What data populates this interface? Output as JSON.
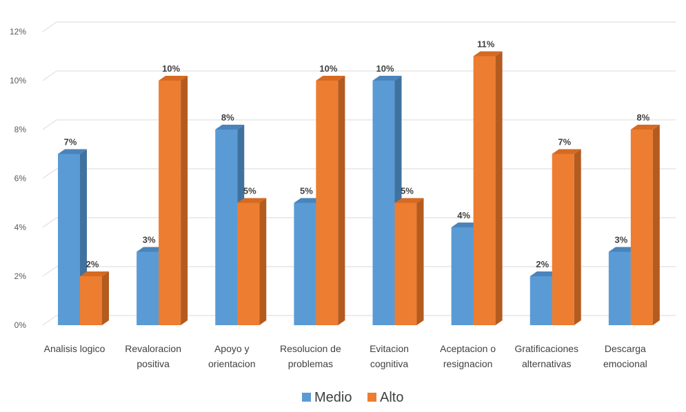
{
  "chart_data": {
    "type": "bar",
    "style": "3d-clustered-column",
    "categories": [
      [
        "Analisis logico"
      ],
      [
        "Revaloracion",
        "positiva"
      ],
      [
        "Apoyo y",
        "orientacion"
      ],
      [
        "Resolucion de",
        "problemas"
      ],
      [
        "Evitacion",
        "cognitiva"
      ],
      [
        "Aceptacion o",
        "resignacion"
      ],
      [
        "Gratificaciones",
        "alternativas"
      ],
      [
        "Descarga",
        "emocional"
      ]
    ],
    "series": [
      {
        "name": "Medio",
        "values": [
          7,
          3,
          8,
          5,
          10,
          4,
          2,
          3
        ],
        "color": "#5B9BD5",
        "side_color": "#3F729F",
        "top_color": "#4A84BA"
      },
      {
        "name": "Alto",
        "values": [
          2,
          10,
          5,
          10,
          5,
          11,
          7,
          8
        ],
        "color": "#ED7D31",
        "side_color": "#B45B1F",
        "top_color": "#D56A22"
      }
    ],
    "ylim": [
      0,
      12
    ],
    "yticks": [
      0,
      2,
      4,
      6,
      8,
      10,
      12
    ],
    "value_suffix": "%",
    "grid": true,
    "legend_position": "bottom"
  }
}
